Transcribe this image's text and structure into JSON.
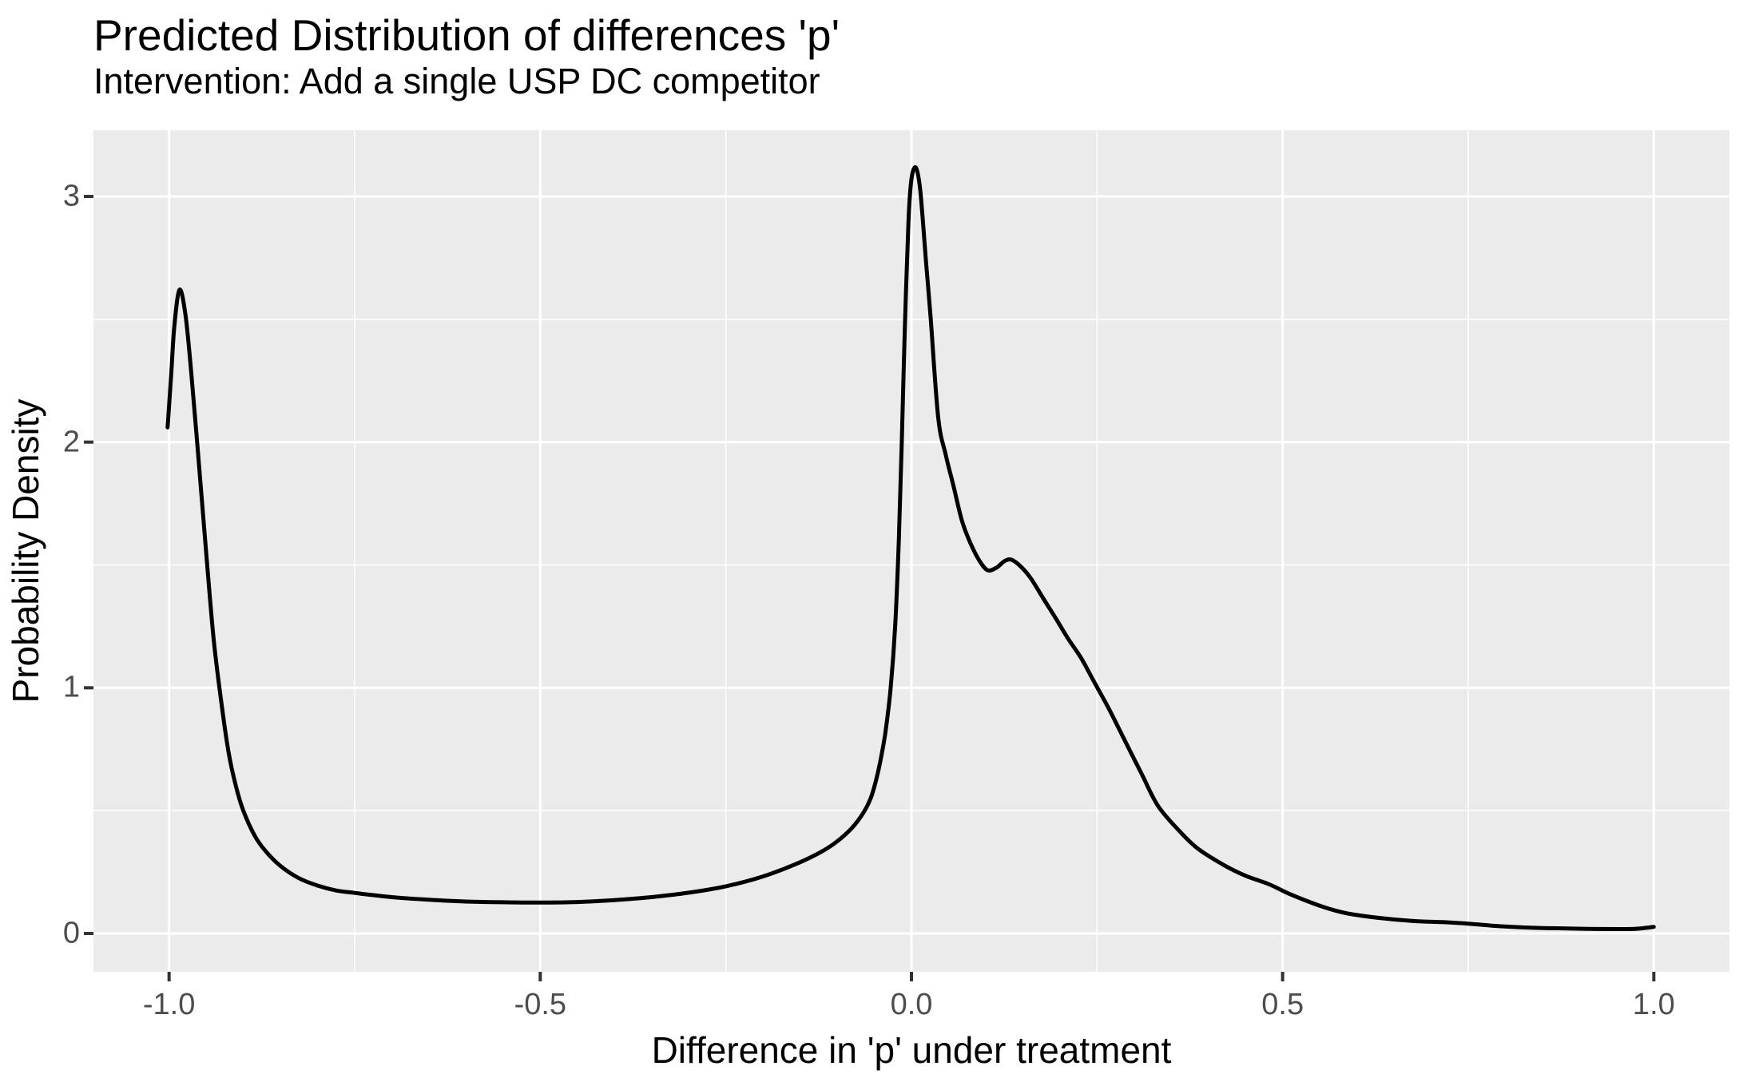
{
  "title": "Predicted Distribution of differences 'p'",
  "subtitle": "Intervention: Add a single USP DC competitor",
  "chart_data": {
    "type": "line",
    "subtype": "density",
    "title": "Predicted Distribution of differences 'p'",
    "subtitle": "Intervention: Add a single USP DC competitor",
    "xlabel": "Difference in 'p' under treatment",
    "ylabel": "Probability Density",
    "xlim": [
      -1.102,
      1.102
    ],
    "ylim": [
      -0.156,
      3.27
    ],
    "x_major_ticks": [
      -1.0,
      -0.5,
      0.0,
      0.5,
      1.0
    ],
    "x_tick_labels": [
      "-1.0",
      "-0.5",
      "0.0",
      "0.5",
      "1.0"
    ],
    "x_minor_ticks": [
      -0.75,
      -0.25,
      0.25,
      0.75
    ],
    "y_major_ticks": [
      0,
      1,
      2,
      3
    ],
    "y_tick_labels": [
      "0",
      "1",
      "2",
      "3"
    ],
    "y_minor_ticks": [
      0.5,
      1.5,
      2.5
    ],
    "grid": true,
    "legend": "none",
    "colors": {
      "panel_background": "#EBEBEB",
      "grid_line": "#FFFFFF",
      "curve": "#000000",
      "tick_mark": "#333333",
      "tick_label": "#4D4D4D",
      "text": "#000000"
    },
    "series": [
      {
        "name": "density",
        "points": [
          [
            -1.002,
            2.06
          ],
          [
            -0.997,
            2.28
          ],
          [
            -0.993,
            2.47
          ],
          [
            -0.986,
            2.62
          ],
          [
            -0.978,
            2.52
          ],
          [
            -0.97,
            2.28
          ],
          [
            -0.96,
            1.92
          ],
          [
            -0.95,
            1.55
          ],
          [
            -0.94,
            1.2
          ],
          [
            -0.93,
            0.95
          ],
          [
            -0.92,
            0.74
          ],
          [
            -0.91,
            0.6
          ],
          [
            -0.9,
            0.5
          ],
          [
            -0.885,
            0.4
          ],
          [
            -0.87,
            0.335
          ],
          [
            -0.85,
            0.275
          ],
          [
            -0.825,
            0.225
          ],
          [
            -0.8,
            0.195
          ],
          [
            -0.775,
            0.175
          ],
          [
            -0.75,
            0.165
          ],
          [
            -0.7,
            0.148
          ],
          [
            -0.65,
            0.137
          ],
          [
            -0.6,
            0.13
          ],
          [
            -0.55,
            0.127
          ],
          [
            -0.5,
            0.126
          ],
          [
            -0.45,
            0.128
          ],
          [
            -0.4,
            0.136
          ],
          [
            -0.35,
            0.148
          ],
          [
            -0.3,
            0.166
          ],
          [
            -0.25,
            0.192
          ],
          [
            -0.2,
            0.232
          ],
          [
            -0.15,
            0.29
          ],
          [
            -0.12,
            0.335
          ],
          [
            -0.1,
            0.375
          ],
          [
            -0.08,
            0.43
          ],
          [
            -0.065,
            0.49
          ],
          [
            -0.055,
            0.55
          ],
          [
            -0.048,
            0.62
          ],
          [
            -0.042,
            0.7
          ],
          [
            -0.035,
            0.82
          ],
          [
            -0.028,
            1.0
          ],
          [
            -0.022,
            1.25
          ],
          [
            -0.017,
            1.6
          ],
          [
            -0.013,
            2.0
          ],
          [
            -0.009,
            2.45
          ],
          [
            -0.004,
            2.9
          ],
          [
            0.0,
            3.07
          ],
          [
            0.006,
            3.117
          ],
          [
            0.012,
            3.02
          ],
          [
            0.02,
            2.72
          ],
          [
            0.026,
            2.5
          ],
          [
            0.036,
            2.1
          ],
          [
            0.046,
            1.95
          ],
          [
            0.056,
            1.83
          ],
          [
            0.068,
            1.68
          ],
          [
            0.08,
            1.585
          ],
          [
            0.092,
            1.515
          ],
          [
            0.103,
            1.478
          ],
          [
            0.115,
            1.49
          ],
          [
            0.125,
            1.515
          ],
          [
            0.134,
            1.522
          ],
          [
            0.145,
            1.5
          ],
          [
            0.16,
            1.449
          ],
          [
            0.178,
            1.362
          ],
          [
            0.195,
            1.28
          ],
          [
            0.211,
            1.2
          ],
          [
            0.228,
            1.124
          ],
          [
            0.245,
            1.03
          ],
          [
            0.265,
            0.92
          ],
          [
            0.285,
            0.8
          ],
          [
            0.31,
            0.65
          ],
          [
            0.332,
            0.52
          ],
          [
            0.36,
            0.42
          ],
          [
            0.386,
            0.345
          ],
          [
            0.42,
            0.28
          ],
          [
            0.45,
            0.235
          ],
          [
            0.482,
            0.2
          ],
          [
            0.51,
            0.16
          ],
          [
            0.548,
            0.115
          ],
          [
            0.575,
            0.09
          ],
          [
            0.6,
            0.075
          ],
          [
            0.64,
            0.06
          ],
          [
            0.68,
            0.05
          ],
          [
            0.716,
            0.046
          ],
          [
            0.75,
            0.04
          ],
          [
            0.79,
            0.03
          ],
          [
            0.83,
            0.024
          ],
          [
            0.87,
            0.021
          ],
          [
            0.91,
            0.019
          ],
          [
            0.95,
            0.018
          ],
          [
            0.975,
            0.019
          ],
          [
            0.99,
            0.023
          ],
          [
            1.0,
            0.027
          ]
        ]
      }
    ]
  }
}
